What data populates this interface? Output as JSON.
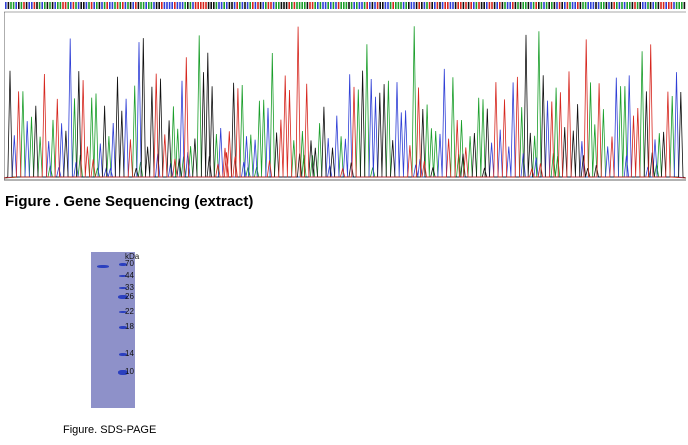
{
  "sequencing": {
    "caption": "Figure . Gene Sequencing (extract)",
    "trace_colors": {
      "A": "#1a9e2a",
      "C": "#2f3fd6",
      "G": "#111111",
      "T": "#d6261e"
    }
  },
  "sds_page": {
    "unit_label": "kDa",
    "markers": [
      "70",
      "44",
      "33",
      "26",
      "22",
      "18",
      "14",
      "10"
    ],
    "caption": "Figure. SDS-PAGE",
    "band_color": "#2a3fbf"
  }
}
